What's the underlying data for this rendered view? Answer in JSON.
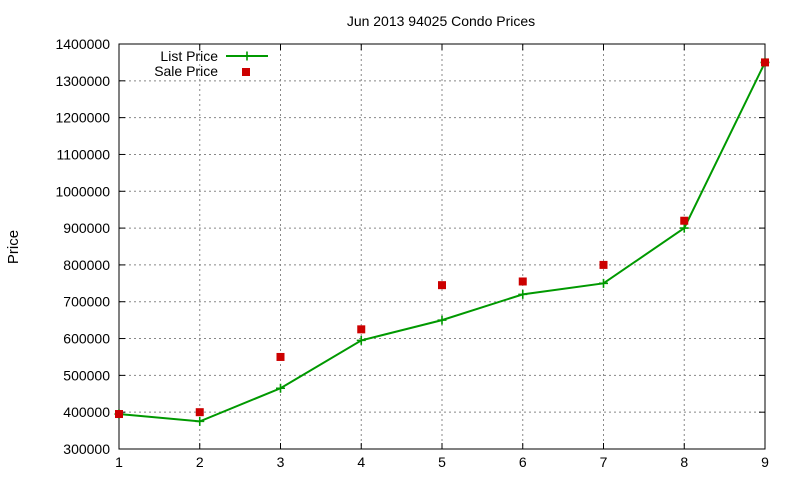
{
  "chart_data": {
    "type": "line",
    "title": "Jun 2013 94025 Condo Prices",
    "xlabel": "",
    "ylabel": "Price",
    "xlim": [
      1,
      9
    ],
    "ylim": [
      300000,
      1400000
    ],
    "x_ticks": [
      1,
      2,
      3,
      4,
      5,
      6,
      7,
      8,
      9
    ],
    "y_ticks": [
      300000,
      400000,
      500000,
      600000,
      700000,
      800000,
      900000,
      1000000,
      1100000,
      1200000,
      1300000,
      1400000
    ],
    "grid": true,
    "legend_position": "top-left",
    "series": [
      {
        "name": "List Price",
        "style": "line+plus",
        "color": "#009900",
        "x": [
          1,
          2,
          3,
          4,
          5,
          6,
          7,
          8,
          9
        ],
        "values": [
          395000,
          375000,
          465000,
          595000,
          650000,
          720000,
          750000,
          900000,
          1350000
        ]
      },
      {
        "name": "Sale Price",
        "style": "square",
        "color": "#cc0000",
        "x": [
          1,
          2,
          3,
          4,
          5,
          6,
          7,
          8,
          9
        ],
        "values": [
          395000,
          400000,
          550000,
          625000,
          745000,
          755000,
          800000,
          920000,
          1350000
        ]
      }
    ]
  }
}
